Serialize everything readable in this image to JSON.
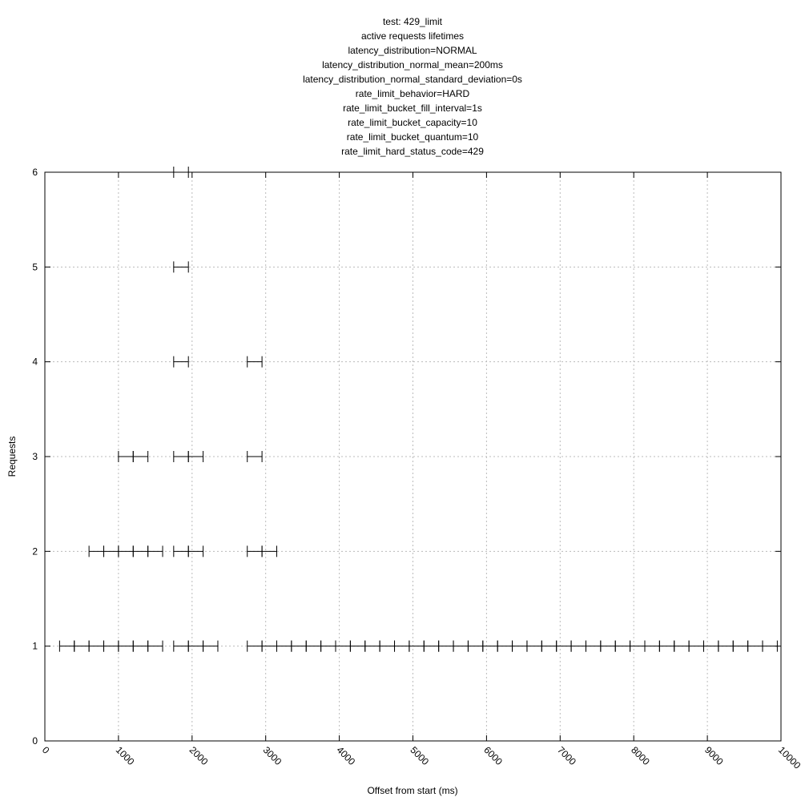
{
  "chart_data": {
    "type": "scatter",
    "title_lines": [
      "test: 429_limit",
      "active requests lifetimes",
      "latency_distribution=NORMAL",
      "latency_distribution_normal_mean=200ms",
      "latency_distribution_normal_standard_deviation=0s",
      "rate_limit_behavior=HARD",
      "rate_limit_bucket_fill_interval=1s",
      "rate_limit_bucket_capacity=10",
      "rate_limit_bucket_quantum=10",
      "rate_limit_hard_status_code=429"
    ],
    "xlabel": "Offset from start (ms)",
    "ylabel": "Requests",
    "xlim": [
      0,
      10000
    ],
    "ylim": [
      0,
      6
    ],
    "x_ticks": [
      0,
      1000,
      2000,
      3000,
      4000,
      5000,
      6000,
      7000,
      8000,
      9000,
      10000
    ],
    "y_ticks": [
      0,
      1,
      2,
      3,
      4,
      5,
      6
    ],
    "grid": true,
    "series": [
      {
        "segments": [
          {
            "y": 1,
            "x_start": 200,
            "x_end": 400
          },
          {
            "y": 1,
            "x_start": 400,
            "x_end": 600
          },
          {
            "y": 1,
            "x_start": 600,
            "x_end": 800
          },
          {
            "y": 1,
            "x_start": 800,
            "x_end": 1000
          },
          {
            "y": 1,
            "x_start": 1000,
            "x_end": 1200
          },
          {
            "y": 1,
            "x_start": 1200,
            "x_end": 1400
          },
          {
            "y": 1,
            "x_start": 1400,
            "x_end": 1600
          },
          {
            "y": 1,
            "x_start": 1750,
            "x_end": 1950
          },
          {
            "y": 1,
            "x_start": 1950,
            "x_end": 2150
          },
          {
            "y": 1,
            "x_start": 2150,
            "x_end": 2350
          },
          {
            "y": 1,
            "x_start": 2750,
            "x_end": 2950
          },
          {
            "y": 1,
            "x_start": 2950,
            "x_end": 3150
          },
          {
            "y": 1,
            "x_start": 3150,
            "x_end": 3350
          },
          {
            "y": 1,
            "x_start": 3350,
            "x_end": 3550
          },
          {
            "y": 1,
            "x_start": 3550,
            "x_end": 3750
          },
          {
            "y": 1,
            "x_start": 3750,
            "x_end": 3950
          },
          {
            "y": 1,
            "x_start": 3950,
            "x_end": 4150
          },
          {
            "y": 1,
            "x_start": 4150,
            "x_end": 4350
          },
          {
            "y": 1,
            "x_start": 4350,
            "x_end": 4550
          },
          {
            "y": 1,
            "x_start": 4550,
            "x_end": 4750
          },
          {
            "y": 1,
            "x_start": 4750,
            "x_end": 4950
          },
          {
            "y": 1,
            "x_start": 4950,
            "x_end": 5150
          },
          {
            "y": 1,
            "x_start": 5150,
            "x_end": 5350
          },
          {
            "y": 1,
            "x_start": 5350,
            "x_end": 5550
          },
          {
            "y": 1,
            "x_start": 5550,
            "x_end": 5750
          },
          {
            "y": 1,
            "x_start": 5750,
            "x_end": 5950
          },
          {
            "y": 1,
            "x_start": 5950,
            "x_end": 6150
          },
          {
            "y": 1,
            "x_start": 6150,
            "x_end": 6350
          },
          {
            "y": 1,
            "x_start": 6350,
            "x_end": 6550
          },
          {
            "y": 1,
            "x_start": 6550,
            "x_end": 6750
          },
          {
            "y": 1,
            "x_start": 6750,
            "x_end": 6950
          },
          {
            "y": 1,
            "x_start": 6950,
            "x_end": 7150
          },
          {
            "y": 1,
            "x_start": 7150,
            "x_end": 7350
          },
          {
            "y": 1,
            "x_start": 7350,
            "x_end": 7550
          },
          {
            "y": 1,
            "x_start": 7550,
            "x_end": 7750
          },
          {
            "y": 1,
            "x_start": 7750,
            "x_end": 7950
          },
          {
            "y": 1,
            "x_start": 7950,
            "x_end": 8150
          },
          {
            "y": 1,
            "x_start": 8150,
            "x_end": 8350
          },
          {
            "y": 1,
            "x_start": 8350,
            "x_end": 8550
          },
          {
            "y": 1,
            "x_start": 8550,
            "x_end": 8750
          },
          {
            "y": 1,
            "x_start": 8750,
            "x_end": 8950
          },
          {
            "y": 1,
            "x_start": 8950,
            "x_end": 9150
          },
          {
            "y": 1,
            "x_start": 9150,
            "x_end": 9350
          },
          {
            "y": 1,
            "x_start": 9350,
            "x_end": 9550
          },
          {
            "y": 1,
            "x_start": 9550,
            "x_end": 9750
          },
          {
            "y": 1,
            "x_start": 9750,
            "x_end": 9950
          },
          {
            "y": 2,
            "x_start": 600,
            "x_end": 800
          },
          {
            "y": 2,
            "x_start": 800,
            "x_end": 1000
          },
          {
            "y": 2,
            "x_start": 1000,
            "x_end": 1200
          },
          {
            "y": 2,
            "x_start": 1200,
            "x_end": 1400
          },
          {
            "y": 2,
            "x_start": 1400,
            "x_end": 1600
          },
          {
            "y": 2,
            "x_start": 1750,
            "x_end": 1950
          },
          {
            "y": 2,
            "x_start": 1950,
            "x_end": 2150
          },
          {
            "y": 2,
            "x_start": 2750,
            "x_end": 2950
          },
          {
            "y": 2,
            "x_start": 2950,
            "x_end": 3150
          },
          {
            "y": 3,
            "x_start": 1000,
            "x_end": 1200
          },
          {
            "y": 3,
            "x_start": 1200,
            "x_end": 1400
          },
          {
            "y": 3,
            "x_start": 1750,
            "x_end": 1950
          },
          {
            "y": 3,
            "x_start": 1950,
            "x_end": 2150
          },
          {
            "y": 3,
            "x_start": 2750,
            "x_end": 2950
          },
          {
            "y": 4,
            "x_start": 1750,
            "x_end": 1950
          },
          {
            "y": 4,
            "x_start": 2750,
            "x_end": 2950
          },
          {
            "y": 5,
            "x_start": 1750,
            "x_end": 1950
          },
          {
            "y": 6,
            "x_start": 1750,
            "x_end": 1950
          }
        ]
      }
    ]
  },
  "colors": {
    "axis": "#000000",
    "grid": "#bbbbbb",
    "segment": "#000000",
    "background": "#ffffff"
  }
}
